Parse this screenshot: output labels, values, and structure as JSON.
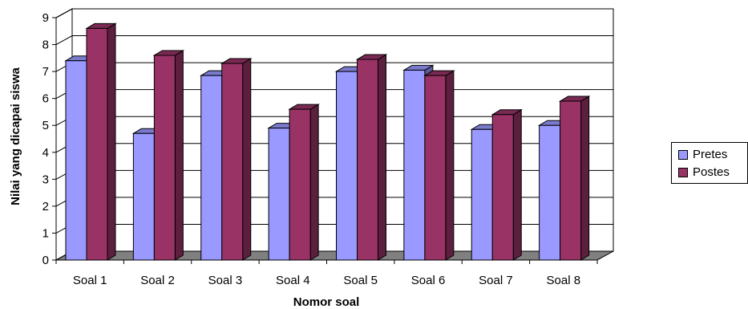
{
  "chart_data": {
    "type": "bar",
    "categories": [
      "Soal 1",
      "Soal 2",
      "Soal 3",
      "Soal 4",
      "Soal 5",
      "Soal 6",
      "Soal 7",
      "Soal 8"
    ],
    "series": [
      {
        "name": "Pretes",
        "values": [
          7.4,
          4.7,
          6.85,
          4.9,
          7.0,
          7.05,
          4.85,
          5.0
        ],
        "color": "#9999ff"
      },
      {
        "name": "Postes",
        "values": [
          8.6,
          7.6,
          7.3,
          5.6,
          7.45,
          6.85,
          5.4,
          5.9
        ],
        "color": "#993366"
      }
    ],
    "xlabel": "Nomor soal",
    "ylabel": "Nilai yang dicapai siswa",
    "ylim": [
      0,
      9
    ],
    "yticks": [
      "0",
      "1",
      "2",
      "3",
      "4",
      "5",
      "6",
      "7",
      "8",
      "9"
    ],
    "grid": true,
    "legend_position": "right",
    "style": "3d-clustered-column",
    "floor_color": "#808080"
  }
}
